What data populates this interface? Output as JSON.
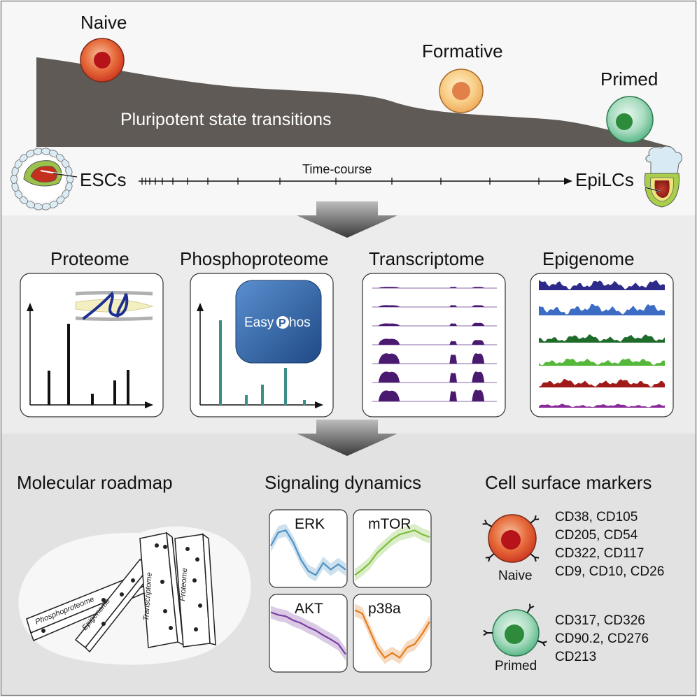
{
  "stages": {
    "naive": "Naive",
    "formative": "Formative",
    "primed": "Primed",
    "landscape_label": "Pluripotent state transitions"
  },
  "timeline": {
    "start": "ESCs",
    "end": "EpiLCs",
    "label": "Time-course"
  },
  "omics": {
    "proteome": "Proteome",
    "phosphoproteome": "Phosphoproteome",
    "transcriptome": "Transcriptome",
    "epigenome": "Epigenome",
    "easyphos_prefix": "Easy",
    "easyphos_p": "P",
    "easyphos_suffix": "hos"
  },
  "bottom": {
    "roadmap_title": "Molecular roadmap",
    "signaling_title": "Signaling dynamics",
    "surface_title": "Cell surface markers",
    "dominoes": [
      "Phosphoproteome",
      "Epigenome",
      "Transcriptome",
      "Proteome"
    ]
  },
  "signaling": [
    {
      "name": "ERK",
      "color": "#4f93c4",
      "values": [
        0.55,
        0.75,
        0.78,
        0.6,
        0.35,
        0.18,
        0.12,
        0.3,
        0.2,
        0.28,
        0.2
      ]
    },
    {
      "name": "mTOR",
      "color": "#7cbf3a",
      "values": [
        0.12,
        0.2,
        0.3,
        0.45,
        0.55,
        0.65,
        0.72,
        0.75,
        0.78,
        0.72,
        0.68
      ]
    },
    {
      "name": "AKT",
      "color": "#7a3fa0",
      "values": [
        0.82,
        0.78,
        0.76,
        0.7,
        0.66,
        0.6,
        0.55,
        0.48,
        0.42,
        0.35,
        0.2
      ]
    },
    {
      "name": "p38a",
      "color": "#e47c1f",
      "values": [
        0.85,
        0.8,
        0.55,
        0.3,
        0.15,
        0.22,
        0.15,
        0.3,
        0.35,
        0.5,
        0.68
      ]
    }
  ],
  "markers": {
    "naive_label": "Naive",
    "primed_label": "Primed",
    "naive_list": [
      "CD38, CD105",
      "CD205, CD54",
      "CD322, CD117",
      "CD9, CD10, CD26"
    ],
    "primed_list": [
      "CD317, CD326",
      "CD90.2, CD276",
      "CD213"
    ]
  },
  "colors": {
    "naive": "#d8382a",
    "formative": "#f0a25c",
    "primed": "#3fae6a",
    "landscape": "#5f5a55",
    "easyphos": "#2b5f9e",
    "phospho_bar": "#3a8f88"
  }
}
